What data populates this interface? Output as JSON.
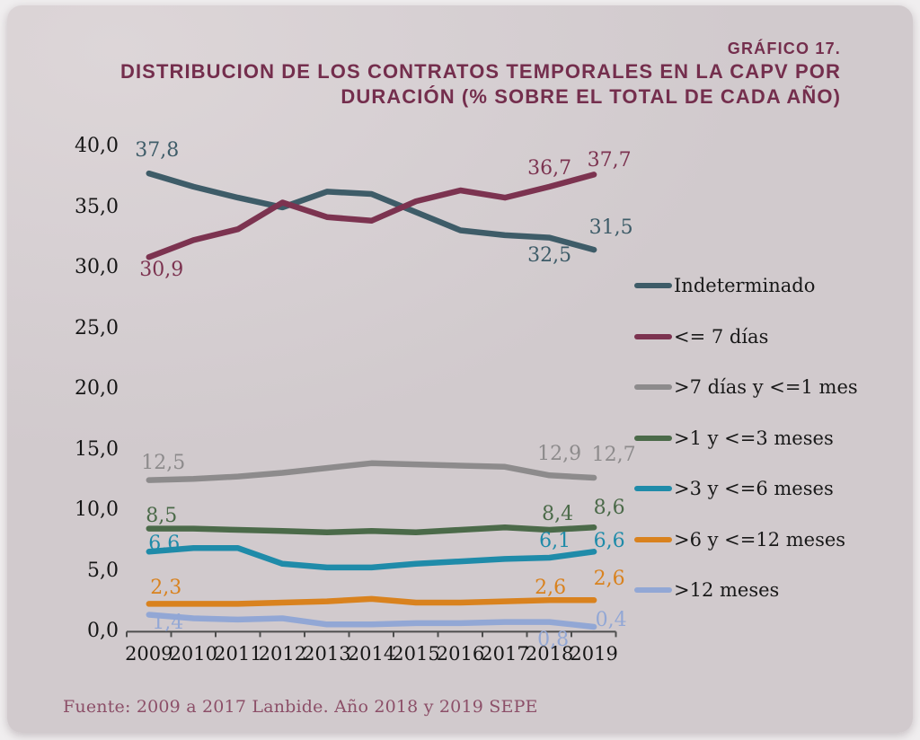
{
  "page": {
    "heading_kicker": "GRÁFICO 17.",
    "title_line1": "DISTRIBUCION DE LOS CONTRATOS TEMPORALES EN LA CAPV POR",
    "title_line2": "DURACIÓN (% SOBRE EL TOTAL DE CADA AÑO)",
    "source": "Fuente: 2009 a 2017 Lanbide. Año 2018 y 2019 SEPE"
  },
  "colors": {
    "page_background": "#f0eeef",
    "panel_background": "#d7d0d3",
    "title_text": "#742e4d",
    "axis_text": "#161616",
    "axis_line": "#4d4d4d",
    "source_text": "#8c4f68"
  },
  "chart_data": {
    "type": "line",
    "title": "DISTRIBUCION DE LOS CONTRATOS TEMPORALES EN LA CAPV POR DURACIÓN (% SOBRE EL TOTAL DE CADA AÑO)",
    "xlabel": "",
    "ylabel": "",
    "ylim": [
      0,
      40
    ],
    "grid": "off",
    "legend_position": "right",
    "categories": [
      "2009",
      "2010",
      "2011",
      "2012",
      "2013",
      "2014",
      "2015",
      "2016",
      "2017",
      "2018",
      "2019"
    ],
    "y_ticks": [
      "0,0",
      "5,0",
      "10,0",
      "15,0",
      "20,0",
      "25,0",
      "30,0",
      "35,0",
      "40,0"
    ],
    "y_tick_values": [
      0,
      5,
      10,
      15,
      20,
      25,
      30,
      35,
      40
    ],
    "series": [
      {
        "name": "Indeterminado",
        "color": "#3e5c68",
        "values": [
          37.8,
          36.7,
          35.8,
          35.0,
          36.3,
          36.1,
          34.6,
          33.1,
          32.7,
          32.5,
          31.5
        ]
      },
      {
        "name": "<= 7 días",
        "color": "#7c3350",
        "values": [
          30.9,
          32.3,
          33.2,
          35.4,
          34.2,
          33.9,
          35.5,
          36.4,
          35.8,
          36.7,
          37.7
        ]
      },
      {
        "name": ">7 días y <=1 mes",
        "color": "#8d8b8c",
        "values": [
          12.5,
          12.6,
          12.8,
          13.1,
          13.5,
          13.9,
          13.8,
          13.7,
          13.6,
          12.9,
          12.7
        ]
      },
      {
        "name": ">1 y <=3 meses",
        "color": "#4b6a49",
        "values": [
          8.5,
          8.5,
          8.4,
          8.3,
          8.2,
          8.3,
          8.2,
          8.4,
          8.6,
          8.4,
          8.6
        ]
      },
      {
        "name": ">3 y <=6 meses",
        "color": "#1f8ba9",
        "values": [
          6.6,
          6.9,
          6.9,
          5.6,
          5.3,
          5.3,
          5.6,
          5.8,
          6.0,
          6.1,
          6.6
        ]
      },
      {
        "name": ">6 y <=12 meses",
        "color": "#d9821e",
        "values": [
          2.3,
          2.3,
          2.3,
          2.4,
          2.5,
          2.7,
          2.4,
          2.4,
          2.5,
          2.6,
          2.6
        ]
      },
      {
        "name": ">12 meses",
        "color": "#92a7d5",
        "values": [
          1.4,
          1.1,
          1.0,
          1.1,
          0.6,
          0.6,
          0.7,
          0.7,
          0.8,
          0.8,
          0.4
        ]
      }
    ],
    "point_labels": [
      {
        "series": 0,
        "year_index": 0,
        "text": "37,8"
      },
      {
        "series": 0,
        "year_index": 9,
        "text": "32,5"
      },
      {
        "series": 0,
        "year_index": 10,
        "text": "31,5"
      },
      {
        "series": 1,
        "year_index": 0,
        "text": "30,9"
      },
      {
        "series": 1,
        "year_index": 9,
        "text": "36,7"
      },
      {
        "series": 1,
        "year_index": 10,
        "text": "37,7"
      },
      {
        "series": 2,
        "year_index": 0,
        "text": "12,5"
      },
      {
        "series": 2,
        "year_index": 9,
        "text": "12,9"
      },
      {
        "series": 2,
        "year_index": 10,
        "text": "12,7"
      },
      {
        "series": 3,
        "year_index": 0,
        "text": "8,5"
      },
      {
        "series": 3,
        "year_index": 9,
        "text": "8,4"
      },
      {
        "series": 3,
        "year_index": 10,
        "text": "8,6"
      },
      {
        "series": 4,
        "year_index": 0,
        "text": "6,6"
      },
      {
        "series": 4,
        "year_index": 9,
        "text": "6,1"
      },
      {
        "series": 4,
        "year_index": 10,
        "text": "6,6"
      },
      {
        "series": 5,
        "year_index": 0,
        "text": "2,3"
      },
      {
        "series": 5,
        "year_index": 9,
        "text": "2,6"
      },
      {
        "series": 5,
        "year_index": 10,
        "text": "2,6"
      },
      {
        "series": 6,
        "year_index": 0,
        "text": "1,4"
      },
      {
        "series": 6,
        "year_index": 9,
        "text": "0,8"
      },
      {
        "series": 6,
        "year_index": 10,
        "text": "0,4"
      }
    ]
  }
}
